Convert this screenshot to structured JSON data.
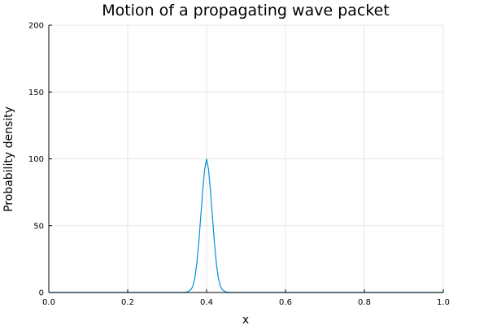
{
  "chart_data": {
    "type": "line",
    "title": "Motion of a propagating wave packet",
    "xlabel": "x",
    "ylabel": "Probability density",
    "xlim": [
      0.0,
      1.0
    ],
    "ylim": [
      0,
      200
    ],
    "grid": true,
    "legend": "none",
    "x_ticks": [
      0.0,
      0.2,
      0.4,
      0.6,
      0.8,
      1.0
    ],
    "x_tick_labels": [
      "0.0",
      "0.2",
      "0.4",
      "0.6",
      "0.8",
      "1.0"
    ],
    "y_ticks": [
      0,
      50,
      100,
      150,
      200
    ],
    "y_tick_labels": [
      "0",
      "50",
      "100",
      "150",
      "200"
    ],
    "series": [
      {
        "color": "#0092d6",
        "x": [
          0.0,
          0.2,
          0.3,
          0.34,
          0.35,
          0.36,
          0.365,
          0.37,
          0.375,
          0.38,
          0.385,
          0.39,
          0.395,
          0.4,
          0.405,
          0.41,
          0.415,
          0.42,
          0.425,
          0.43,
          0.435,
          0.44,
          0.45,
          0.46,
          0.5,
          0.6,
          0.8,
          1.0
        ],
        "y": [
          0,
          0,
          0,
          0.0,
          0.3,
          2.0,
          4.6,
          10.5,
          21.1,
          36.8,
          56.0,
          75.4,
          92.0,
          100.0,
          92.0,
          75.4,
          56.0,
          36.8,
          21.1,
          10.5,
          4.6,
          2.0,
          0.3,
          0.0,
          0,
          0,
          0,
          0
        ]
      }
    ]
  }
}
